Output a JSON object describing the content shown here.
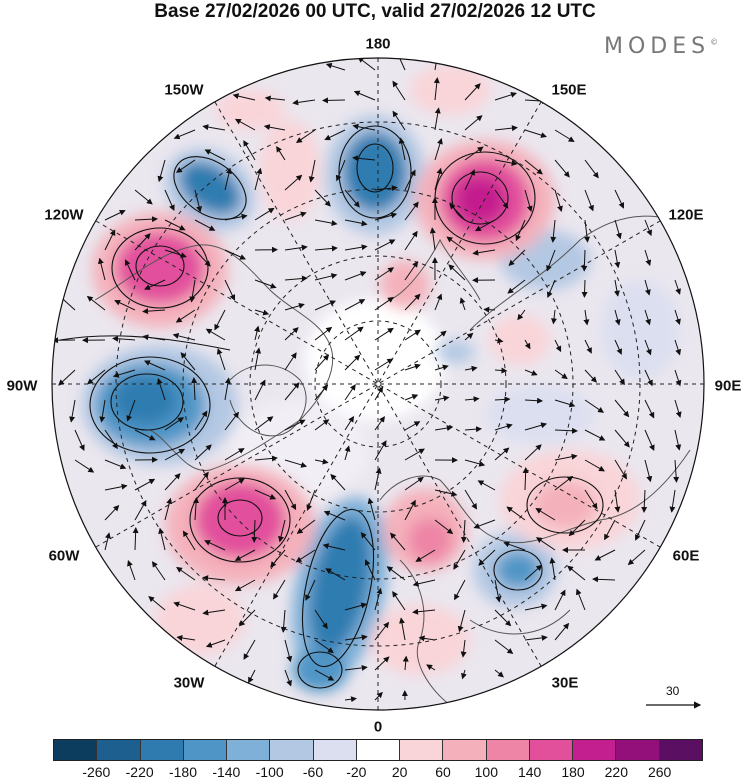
{
  "title": "Base 27/02/2026 00 UTC, valid 27/02/2026 12 UTC",
  "brand": {
    "name": "MODES",
    "mark": "©"
  },
  "longitude_labels": {
    "lon_180": "180",
    "lon_150e": "150E",
    "lon_120e": "120E",
    "lon_90e": "90E",
    "lon_60e": "60E",
    "lon_30e": "30E",
    "lon_0": "0",
    "lon_30w": "30W",
    "lon_60w": "60W",
    "lon_90w": "90W",
    "lon_120w": "120W",
    "lon_150w": "150W"
  },
  "reference_vector": {
    "value": "30"
  },
  "colorbar": {
    "colors": [
      "#0d3d5e",
      "#1d5f8e",
      "#2f7bb0",
      "#4f95c6",
      "#7fb0d8",
      "#b3c8e3",
      "#dcdff0",
      "#ffffff",
      "#f9d4d8",
      "#f4b1bb",
      "#ee85a6",
      "#e2509c",
      "#c41f8e",
      "#93107a",
      "#5a0f63"
    ],
    "ticks": [
      "-260",
      "-220",
      "-180",
      "-140",
      "-100",
      "-60",
      "-20",
      "20",
      "60",
      "100",
      "140",
      "180",
      "220",
      "260"
    ]
  },
  "colors": {
    "land_edge": "#555555",
    "grid": "#222222",
    "contour": "#111111"
  }
}
